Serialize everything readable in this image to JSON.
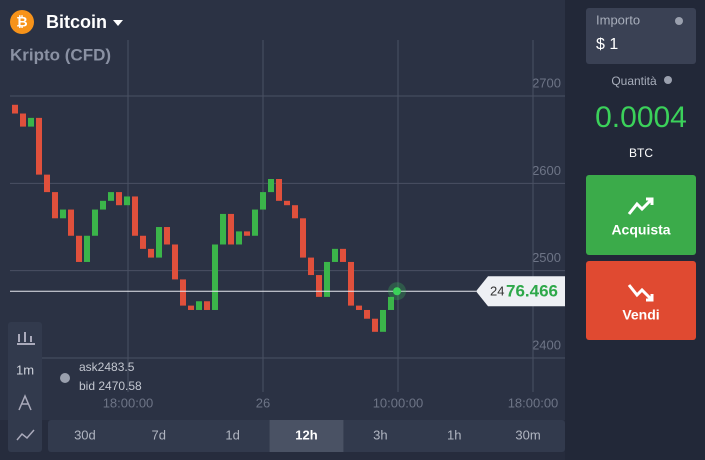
{
  "header": {
    "asset": "Bitcoin",
    "subtitle": "Kripto (CFD)"
  },
  "chart_data": {
    "type": "candlestick",
    "opens": [
      2690,
      2680,
      2665,
      2675,
      2610,
      2590,
      2560,
      2570,
      2540,
      2510,
      2540,
      2570,
      2580,
      2590,
      2575,
      2585,
      2540,
      2525,
      2515,
      2550,
      2530,
      2490,
      2460,
      2455,
      2465,
      2455,
      2530,
      2565,
      2530,
      2545,
      2540,
      2570,
      2590,
      2605,
      2580,
      2575,
      2560,
      2515,
      2495,
      2470,
      2510,
      2525,
      2510,
      2460,
      2455,
      2445,
      2430,
      2455
    ],
    "closes": [
      2680,
      2665,
      2675,
      2610,
      2590,
      2560,
      2570,
      2540,
      2510,
      2540,
      2570,
      2580,
      2590,
      2575,
      2585,
      2540,
      2525,
      2515,
      2550,
      2530,
      2490,
      2460,
      2455,
      2465,
      2455,
      2530,
      2565,
      2530,
      2545,
      2540,
      2570,
      2590,
      2605,
      2580,
      2575,
      2560,
      2515,
      2495,
      2470,
      2510,
      2525,
      2510,
      2460,
      2455,
      2445,
      2430,
      2455,
      2470
    ],
    "up_color": "#3bb54a",
    "down_color": "#e0503c",
    "xlim": [
      -1.875,
      68.75
    ],
    "xticks": [
      {
        "value": 14.125,
        "label": "18:00:00"
      },
      {
        "value": 31,
        "label": "26"
      },
      {
        "value": 47.875,
        "label": "10:00:00"
      },
      {
        "value": 64.75,
        "label": "18:00:00"
      }
    ],
    "ylim": [
      2329,
      2810
    ],
    "yticks": [
      2400,
      2500,
      2600,
      2700
    ],
    "grid": true,
    "current_price": 2476.466,
    "current_price_label": [
      "24",
      "76.466"
    ],
    "ask": "ask2483.5",
    "bid": "bid 2470.58"
  },
  "toolbar": {
    "interval": "1m",
    "ranges": [
      "30d",
      "7d",
      "1d",
      "12h",
      "3h",
      "1h",
      "30m"
    ],
    "active_range": 3
  },
  "panel": {
    "amount_label": "Importo",
    "amount": "$ 1",
    "quantity_label": "Quantità",
    "quantity": "0.0004",
    "unit": "BTC",
    "buy": "Acquista",
    "sell": "Vendi"
  }
}
